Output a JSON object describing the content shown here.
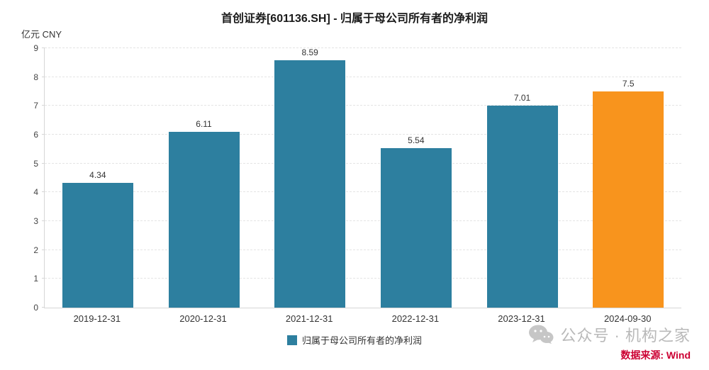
{
  "chart_data": {
    "type": "bar",
    "title": "首创证券[601136.SH] - 归属于母公司所有者的净利润",
    "unit_label": "亿元  CNY",
    "categories": [
      "2019-12-31",
      "2020-12-31",
      "2021-12-31",
      "2022-12-31",
      "2023-12-31",
      "2024-09-30"
    ],
    "values": [
      4.34,
      6.11,
      8.59,
      5.54,
      7.01,
      7.5
    ],
    "value_labels": [
      "4.34",
      "6.11",
      "8.59",
      "5.54",
      "7.01",
      "7.5"
    ],
    "bar_colors": [
      "#2d7f9f",
      "#2d7f9f",
      "#2d7f9f",
      "#2d7f9f",
      "#2d7f9f",
      "#f8941d"
    ],
    "ylim": [
      0,
      9
    ],
    "yticks": [
      0,
      1,
      2,
      3,
      4,
      5,
      6,
      7,
      8,
      9
    ],
    "grid": "horizontal-dashed",
    "legend": {
      "label": "归属于母公司所有者的净利润",
      "color": "#2d7f9f",
      "position": "bottom-center"
    }
  },
  "watermark": {
    "account": "公众号 · 机构之家",
    "source": "数据来源: Wind",
    "source_color": "#cc0033",
    "icon": "wechat-icon",
    "icon_color": "#c6c6c6"
  }
}
